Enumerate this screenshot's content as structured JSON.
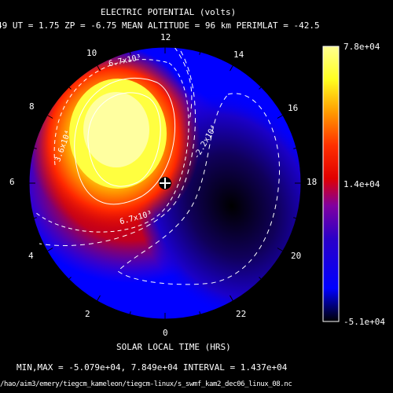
{
  "header": {
    "title": "ELECTRIC POTENTIAL (volts)",
    "info_line": "49   UT =   1.75   ZP =   -6.75   MEAN ALTITUDE =   96 km   PERIMLAT = -42.5"
  },
  "dial": {
    "hour_labels": [
      "12",
      "14",
      "16",
      "18",
      "20",
      "22",
      "0",
      "2",
      "4",
      "6",
      "8",
      "10"
    ],
    "axis_label": "SOLAR LOCAL TIME (HRS)"
  },
  "contour_labels": [
    "6.7x10³",
    "3.6x10⁴",
    "6.7x10³",
    "-2.2x10⁴"
  ],
  "colorbar": {
    "max_label": "7.8e+04",
    "mid_label": "1.4e+04",
    "min_label": "-5.1e+04",
    "min_value": -51000,
    "max_value": 78000
  },
  "footer": {
    "stats": "MIN,MAX = -5.079e+04, 7.849e+04 INTERVAL =  1.437e+04",
    "path": "/hao/aim3/emery/tiegcm_kameleon/tiegcm-linux/s_swmf_kam2_dec06_linux_08.nc"
  },
  "colors": {
    "background": "#000000",
    "positive_peak": "#ffff80",
    "negative_peak": "#000000",
    "zero_level": "#e00000",
    "low": "#0000ff"
  }
}
